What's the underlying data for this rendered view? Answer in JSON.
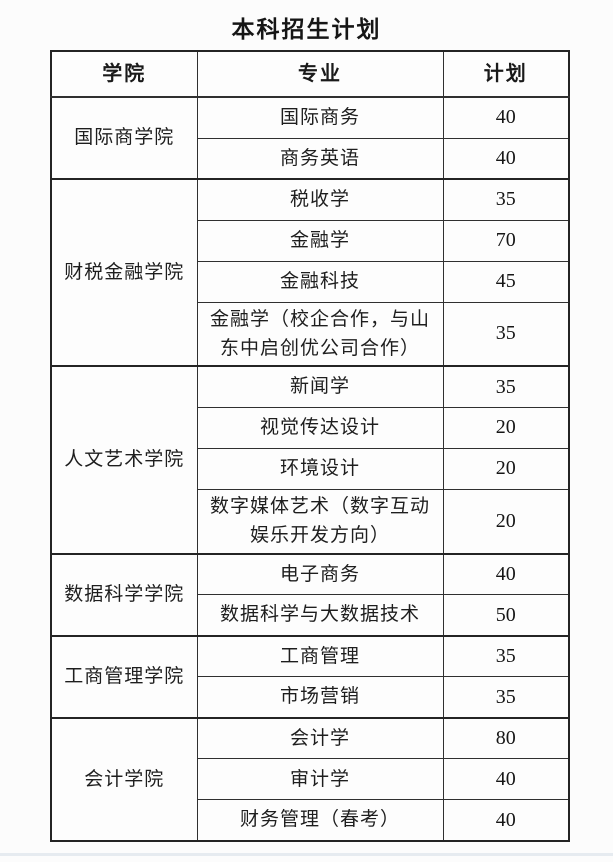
{
  "page": {
    "title": "本科招生计划"
  },
  "table": {
    "headers": [
      "学院",
      "专业",
      "计划"
    ],
    "groups": [
      {
        "college": "国际商学院",
        "majors": [
          {
            "name": "国际商务",
            "plan": "40"
          },
          {
            "name": "商务英语",
            "plan": "40"
          }
        ]
      },
      {
        "college": "财税金融学院",
        "majors": [
          {
            "name": "税收学",
            "plan": "35"
          },
          {
            "name": "金融学",
            "plan": "70"
          },
          {
            "name": "金融科技",
            "plan": "45"
          },
          {
            "name": "金融学（校企合作，与山东中启创优公司合作）",
            "plan": "35"
          }
        ]
      },
      {
        "college": "人文艺术学院",
        "majors": [
          {
            "name": "新闻学",
            "plan": "35"
          },
          {
            "name": "视觉传达设计",
            "plan": "20"
          },
          {
            "name": "环境设计",
            "plan": "20"
          },
          {
            "name": "数字媒体艺术（数字互动娱乐开发方向）",
            "plan": "20"
          }
        ]
      },
      {
        "college": "数据科学学院",
        "majors": [
          {
            "name": "电子商务",
            "plan": "40"
          },
          {
            "name": "数据科学与大数据技术",
            "plan": "50"
          }
        ]
      },
      {
        "college": "工商管理学院",
        "majors": [
          {
            "name": "工商管理",
            "plan": "35"
          },
          {
            "name": "市场营销",
            "plan": "35"
          }
        ]
      },
      {
        "college": "会计学院",
        "majors": [
          {
            "name": "会计学",
            "plan": "80"
          },
          {
            "name": "审计学",
            "plan": "40"
          },
          {
            "name": "财务管理（春考）",
            "plan": "40"
          }
        ]
      }
    ]
  },
  "colors": {
    "page_background": "#fcfcfc",
    "table_border": "#242424",
    "text": "#1c1c1c",
    "bottom_divider": "#e6ebf0"
  }
}
